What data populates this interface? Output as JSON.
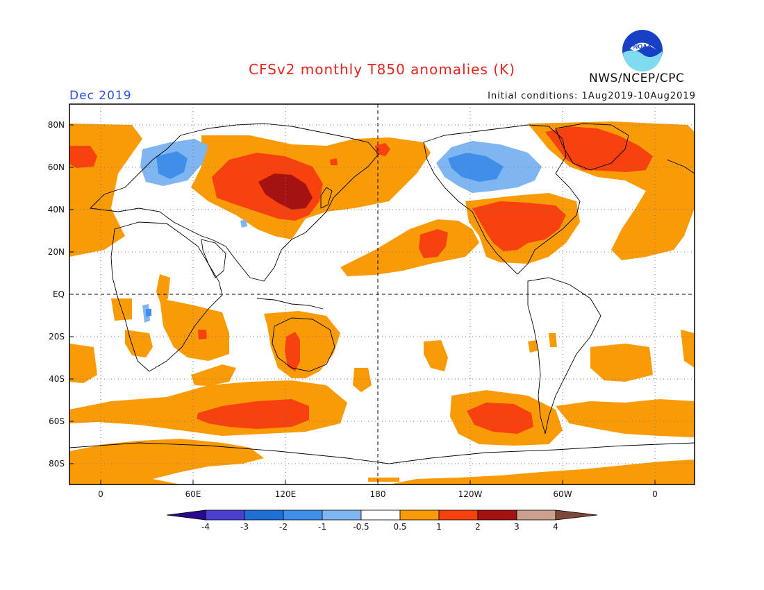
{
  "title": "CFSv2 monthly T850 anomalies (K)",
  "valid_month": "Dec 2019",
  "initial_conditions": "Initial conditions: 1Aug2019-10Aug2019",
  "agency": "NWS/NCEP/CPC",
  "logo_text": "NOAA",
  "lat_labels": [
    "80N",
    "60N",
    "40N",
    "20N",
    "EQ",
    "20S",
    "40S",
    "60S",
    "80S"
  ],
  "lon_labels": [
    "0",
    "60E",
    "120E",
    "180",
    "120W",
    "60W",
    "0"
  ],
  "colorbar_labels": [
    "-4",
    "-3",
    "-2",
    "-1",
    "-0.5",
    "0.5",
    "1",
    "2",
    "3",
    "4"
  ],
  "colors": {
    "lt_minus4": "#2a0a8c",
    "m4_m3": "#4a3fd1",
    "m3_m2": "#1e6fd6",
    "m2_m1": "#3f8fea",
    "m1_m05": "#7fb6f2",
    "neutral": "#ffffff",
    "p05_p1": "#f99b06",
    "p1_p2": "#f7410f",
    "p2_p3": "#a51212",
    "p3_p4": "#c9a08c",
    "gt_p4": "#7b4a38"
  }
}
